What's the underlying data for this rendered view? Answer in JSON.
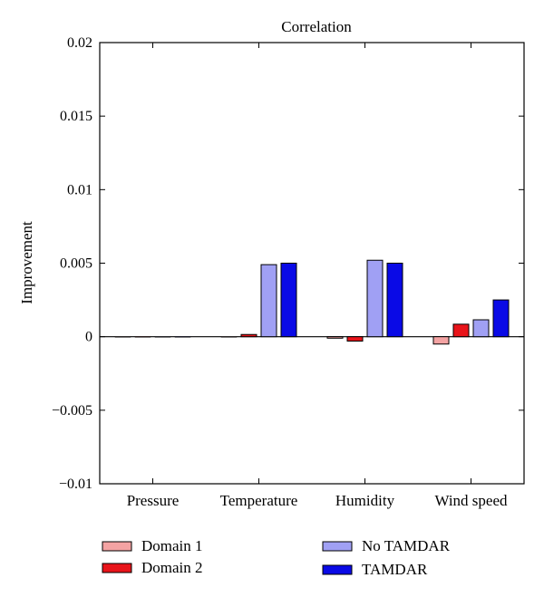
{
  "chart_data": {
    "type": "bar",
    "title": "Correlation",
    "xlabel": "",
    "ylabel": "Improvement",
    "ylim": [
      -0.01,
      0.02
    ],
    "yticks": [
      0.02,
      0.015,
      0.01,
      0.005,
      0,
      -0.005,
      -0.01
    ],
    "ytick_labels": [
      "0.02",
      "0.015",
      "0.01",
      "0.005",
      "0",
      "−0.005",
      "−0.01"
    ],
    "categories": [
      "Pressure",
      "Temperature",
      "Humidity",
      "Wind speed"
    ],
    "series": [
      {
        "name": "Domain 1",
        "color": "#f4a3a3",
        "values": [
          0,
          0,
          -0.0001,
          -0.0005
        ]
      },
      {
        "name": "Domain 2",
        "color": "#e8141a",
        "values": [
          0,
          0.00015,
          -0.0003,
          0.00085
        ]
      },
      {
        "name": "No TAMDAR",
        "color": "#a0a0f4",
        "values": [
          0,
          0.0049,
          0.0052,
          0.00115
        ]
      },
      {
        "name": "TAMDAR",
        "color": "#0a0ae6",
        "values": [
          0,
          0.005,
          0.005,
          0.0025
        ]
      }
    ],
    "grid": false,
    "legend_position": "bottom"
  }
}
